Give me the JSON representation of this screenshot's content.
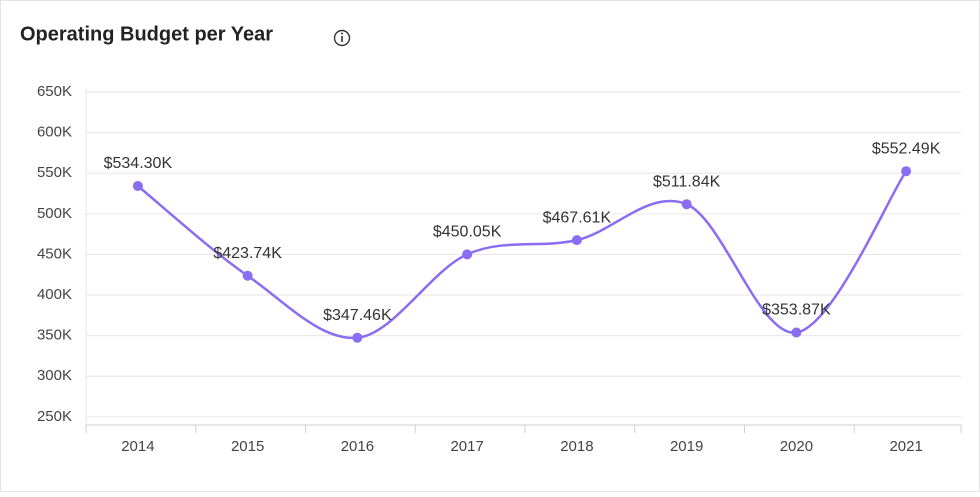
{
  "chart_data": {
    "type": "line",
    "title": "Operating Budget per Year",
    "categories": [
      "2014",
      "2015",
      "2016",
      "2017",
      "2018",
      "2019",
      "2020",
      "2021"
    ],
    "values": [
      534300,
      423740,
      347460,
      450050,
      467610,
      511840,
      353870,
      552490
    ],
    "value_labels": [
      "$534.30K",
      "$423.74K",
      "$347.46K",
      "$450.05K",
      "$467.61K",
      "$511.84K",
      "$353.87K",
      "$552.49K"
    ],
    "color": "#8a6df1",
    "smooth": true,
    "grid": true,
    "ylim": [
      240000,
      650000
    ],
    "yticks": [
      {
        "value": 250000,
        "label": "250K"
      },
      {
        "value": 300000,
        "label": "300K"
      },
      {
        "value": 350000,
        "label": "350K"
      },
      {
        "value": 400000,
        "label": "400K"
      },
      {
        "value": 450000,
        "label": "450K"
      },
      {
        "value": 500000,
        "label": "500K"
      },
      {
        "value": 550000,
        "label": "550K"
      },
      {
        "value": 600000,
        "label": "600K"
      },
      {
        "value": 650000,
        "label": "650K"
      }
    ]
  }
}
